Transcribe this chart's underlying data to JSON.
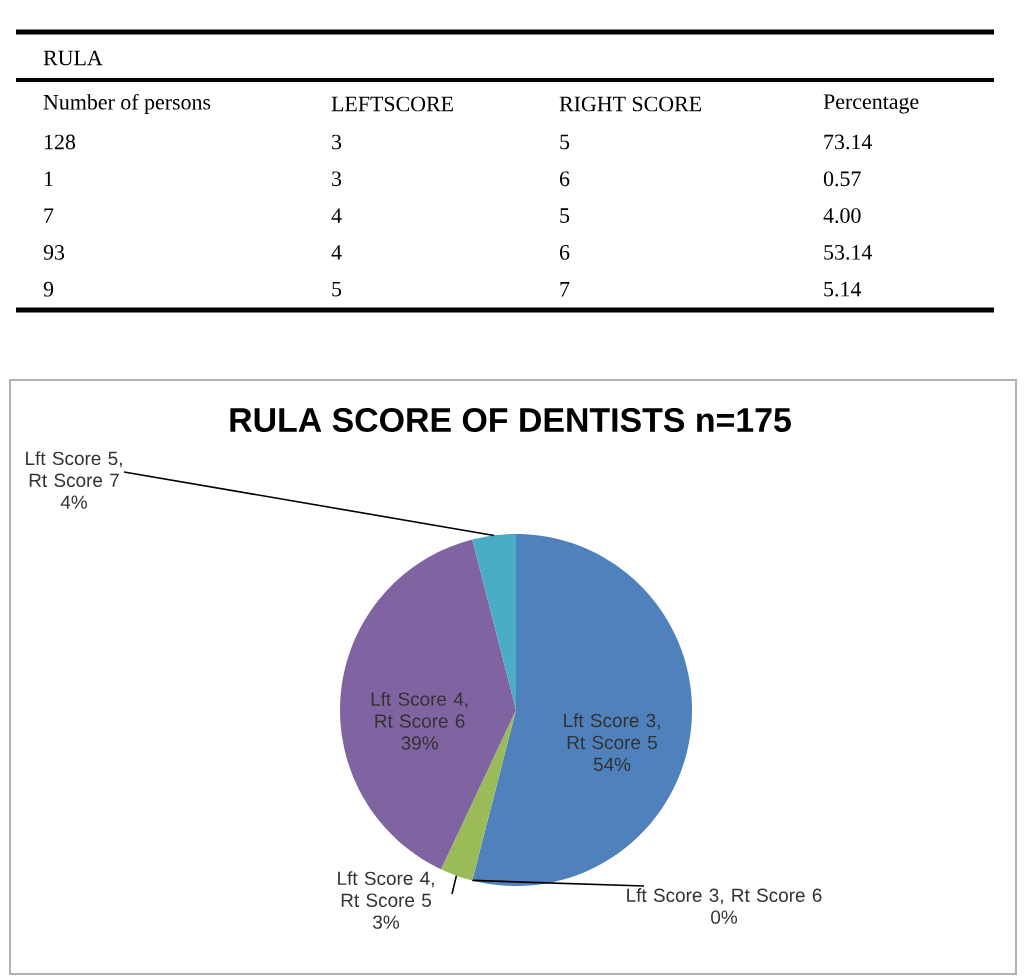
{
  "chart_data": [
    {
      "type": "other",
      "title": "RULA",
      "categories": [
        "Number of persons",
        "LEFTSCORE",
        "RIGHT SCORE",
        "Percentage"
      ],
      "annotations": [
        "128",
        "3",
        "5",
        "73.14",
        "1",
        "3",
        "6",
        "0.57",
        "7",
        "4",
        "5",
        "4.00",
        "93",
        "4",
        "6",
        "53.14",
        "9",
        "5",
        "7",
        "5.14"
      ]
    },
    {
      "type": "pie",
      "title": "RULA SCORE OF DENTISTS n=175",
      "categories": [
        "Lft Score 3, Rt Score 5",
        "Lft Score 3, Rt Score 6",
        "Lft Score 4, Rt Score 5",
        "Lft Score 4, Rt Score 6",
        "Lft Score 5, Rt Score 7"
      ],
      "values": [
        54,
        0,
        3,
        39,
        4
      ],
      "colors": [
        "#4f81bd",
        "#c0504d",
        "#9bbb59",
        "#8064a2",
        "#4bacc6"
      ],
      "value_labels": [
        "54%",
        "0%",
        "3%",
        "39%",
        "4%"
      ]
    }
  ]
}
